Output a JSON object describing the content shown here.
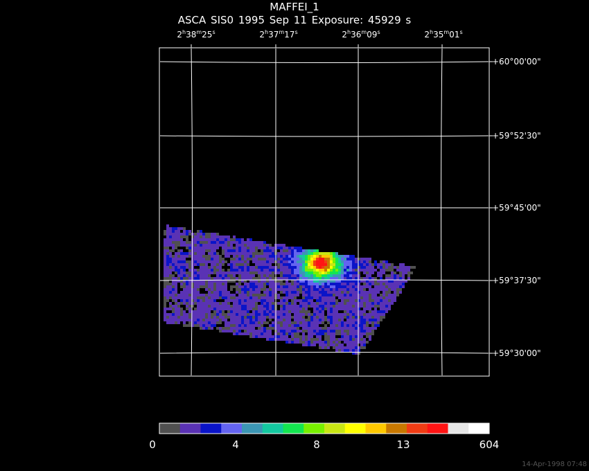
{
  "header": {
    "title": "MAFFEI_1",
    "subtitle": "ASCA SIS0   1995 Sep 11    Exposure: 45929 s"
  },
  "ra_labels": [
    {
      "h": "2",
      "m": "38",
      "s": "25"
    },
    {
      "h": "2",
      "m": "37",
      "s": "17"
    },
    {
      "h": "2",
      "m": "36",
      "s": "09"
    },
    {
      "h": "2",
      "m": "35",
      "s": "01"
    }
  ],
  "dec_labels": [
    "+60°00'00\"",
    "+59°52'30\"",
    "+59°45'00\"",
    "+59°37'30\"",
    "+59°30'00\""
  ],
  "colorbar": {
    "colors": [
      "#505050",
      "#5a32b4",
      "#0a14c8",
      "#6464f0",
      "#3c96b4",
      "#14c8a0",
      "#14e650",
      "#78f000",
      "#c8e614",
      "#ffff00",
      "#ffc800",
      "#c87800",
      "#f03c14",
      "#ff1414",
      "#e6e6e6",
      "#ffffff"
    ],
    "labels": [
      "0",
      "4",
      "8",
      "13",
      "604"
    ]
  },
  "timestamp": "14-Apr-1998 07:48"
}
